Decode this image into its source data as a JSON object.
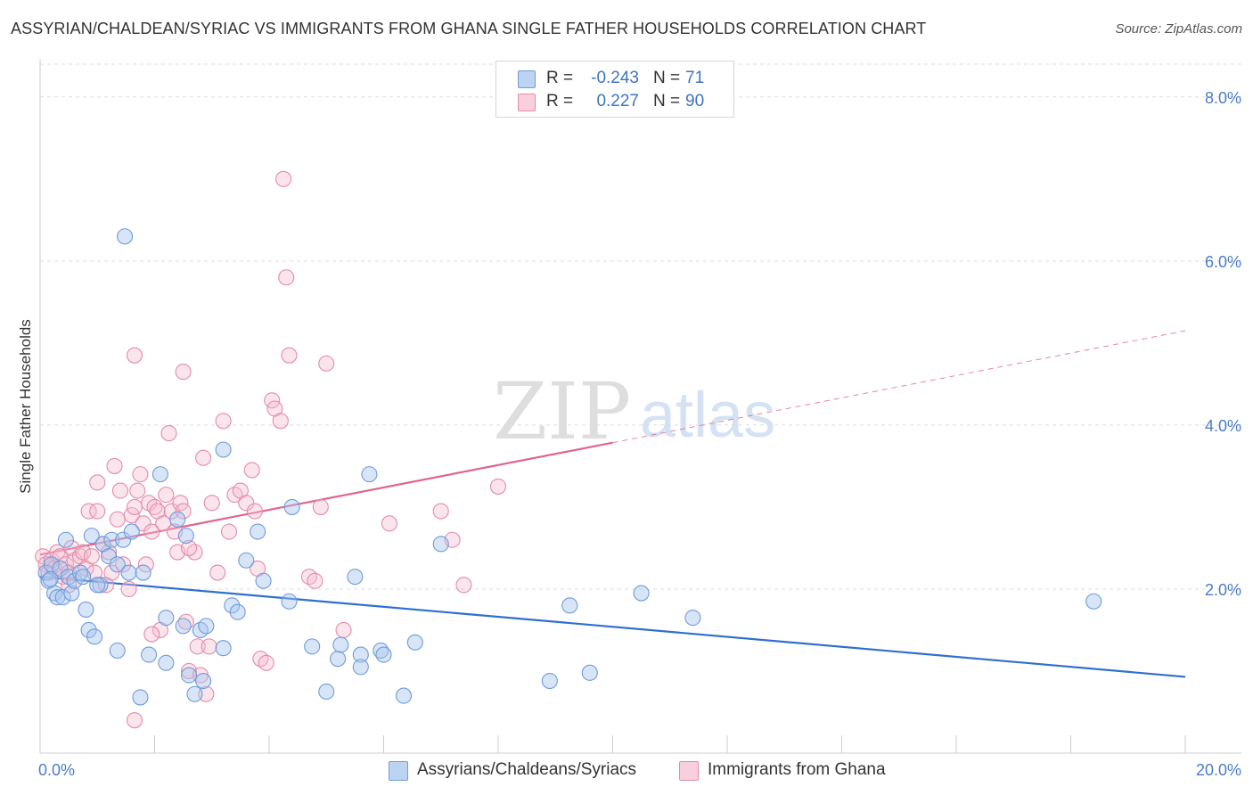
{
  "title": "ASSYRIAN/CHALDEAN/SYRIAC VS IMMIGRANTS FROM GHANA SINGLE FATHER HOUSEHOLDS CORRELATION CHART",
  "source": "Source: ZipAtlas.com",
  "watermark": {
    "zip": "ZIP",
    "atlas": "atlas"
  },
  "legend": {
    "r_label": "R =",
    "n_label": "N =",
    "rows": [
      {
        "r": "-0.243",
        "n": "71",
        "fill": "#a9c6ee",
        "stroke": "#5b8fd6"
      },
      {
        "r": "0.227",
        "n": "90",
        "fill": "#f6bfd0",
        "stroke": "#e485a6"
      }
    ]
  },
  "colors": {
    "blue": "#2f6fd0",
    "pink": "#e0648f",
    "blue_fill": "#a9c6ee",
    "pink_fill": "#f6bfd0",
    "tick_text": "#4a7cc9",
    "grid": "#dddddd"
  },
  "chart_data": {
    "type": "scatter",
    "title": "ASSYRIAN/CHALDEAN/SYRIAC VS IMMIGRANTS FROM GHANA SINGLE FATHER HOUSEHOLDS CORRELATION CHART",
    "xlabel": "",
    "ylabel": "Single Father Households",
    "xlim": [
      0,
      20
    ],
    "ylim": [
      0,
      8.4
    ],
    "x_tick_labels": [
      "0.0%",
      "20.0%"
    ],
    "y_ticks": [
      2,
      4,
      6,
      8
    ],
    "y_tick_labels": [
      "2.0%",
      "4.0%",
      "6.0%",
      "8.0%"
    ],
    "grid": true,
    "legend_position": "top-center",
    "series": [
      {
        "name": "Assyrians/Chaldeans/Syriacs",
        "color": "#2f6fd0",
        "trend": {
          "x": [
            0,
            20
          ],
          "y": [
            2.15,
            0.93
          ],
          "dashed_from": null
        },
        "points": [
          [
            0.1,
            2.2
          ],
          [
            0.15,
            2.1
          ],
          [
            0.2,
            2.3
          ],
          [
            0.25,
            1.95
          ],
          [
            0.3,
            1.9
          ],
          [
            0.35,
            2.25
          ],
          [
            0.4,
            1.9
          ],
          [
            0.45,
            2.6
          ],
          [
            0.5,
            2.15
          ],
          [
            0.55,
            1.95
          ],
          [
            0.6,
            2.1
          ],
          [
            0.7,
            2.2
          ],
          [
            0.75,
            2.15
          ],
          [
            0.8,
            1.75
          ],
          [
            0.85,
            1.5
          ],
          [
            0.9,
            2.65
          ],
          [
            0.95,
            1.42
          ],
          [
            1.05,
            2.05
          ],
          [
            1.1,
            2.55
          ],
          [
            1.2,
            2.4
          ],
          [
            1.25,
            2.6
          ],
          [
            1.35,
            2.3
          ],
          [
            1.35,
            1.25
          ],
          [
            1.45,
            2.6
          ],
          [
            1.55,
            2.2
          ],
          [
            1.6,
            2.7
          ],
          [
            1.75,
            0.68
          ],
          [
            1.8,
            2.2
          ],
          [
            1.9,
            1.2
          ],
          [
            2.1,
            3.4
          ],
          [
            2.2,
            1.1
          ],
          [
            2.2,
            1.65
          ],
          [
            2.4,
            2.85
          ],
          [
            2.5,
            1.55
          ],
          [
            2.55,
            2.65
          ],
          [
            2.6,
            0.95
          ],
          [
            2.7,
            0.72
          ],
          [
            2.8,
            1.5
          ],
          [
            2.85,
            0.88
          ],
          [
            2.9,
            1.55
          ],
          [
            3.2,
            3.7
          ],
          [
            3.2,
            1.28
          ],
          [
            3.35,
            1.8
          ],
          [
            3.45,
            1.72
          ],
          [
            3.6,
            2.35
          ],
          [
            3.8,
            2.7
          ],
          [
            4.35,
            1.85
          ],
          [
            4.4,
            3.0
          ],
          [
            4.75,
            1.3
          ],
          [
            5.0,
            0.75
          ],
          [
            5.2,
            1.15
          ],
          [
            5.25,
            1.32
          ],
          [
            5.5,
            2.15
          ],
          [
            5.6,
            1.2
          ],
          [
            5.6,
            1.05
          ],
          [
            5.75,
            3.4
          ],
          [
            5.95,
            1.25
          ],
          [
            6.0,
            1.2
          ],
          [
            6.35,
            0.7
          ],
          [
            6.55,
            1.35
          ],
          [
            7.0,
            2.55
          ],
          [
            8.9,
            0.88
          ],
          [
            9.25,
            1.8
          ],
          [
            9.6,
            0.98
          ],
          [
            10.5,
            1.95
          ],
          [
            11.4,
            1.65
          ],
          [
            1.48,
            6.3
          ],
          [
            18.4,
            1.85
          ],
          [
            0.18,
            2.12
          ],
          [
            1.0,
            2.05
          ],
          [
            3.9,
            2.1
          ]
        ]
      },
      {
        "name": "Immigrants from Ghana",
        "color": "#e0648f",
        "trend": {
          "x": [
            0,
            20
          ],
          "y": [
            2.42,
            5.15
          ],
          "dashed_from": 10
        },
        "points": [
          [
            0.05,
            2.4
          ],
          [
            0.1,
            2.3
          ],
          [
            0.15,
            2.2
          ],
          [
            0.2,
            2.35
          ],
          [
            0.25,
            2.25
          ],
          [
            0.3,
            2.45
          ],
          [
            0.35,
            2.4
          ],
          [
            0.4,
            2.15
          ],
          [
            0.45,
            2.3
          ],
          [
            0.5,
            2.2
          ],
          [
            0.55,
            2.5
          ],
          [
            0.6,
            2.35
          ],
          [
            0.7,
            2.4
          ],
          [
            0.75,
            2.45
          ],
          [
            0.8,
            2.25
          ],
          [
            0.85,
            2.95
          ],
          [
            0.9,
            2.4
          ],
          [
            0.95,
            2.2
          ],
          [
            1.0,
            2.95
          ],
          [
            1.0,
            3.3
          ],
          [
            1.1,
            2.55
          ],
          [
            1.15,
            2.05
          ],
          [
            1.2,
            2.45
          ],
          [
            1.25,
            2.2
          ],
          [
            1.3,
            3.5
          ],
          [
            1.35,
            2.85
          ],
          [
            1.4,
            3.2
          ],
          [
            1.45,
            2.3
          ],
          [
            1.55,
            2.0
          ],
          [
            1.6,
            2.9
          ],
          [
            1.65,
            3.0
          ],
          [
            1.7,
            3.2
          ],
          [
            1.75,
            3.4
          ],
          [
            1.8,
            2.8
          ],
          [
            1.85,
            2.3
          ],
          [
            1.9,
            3.05
          ],
          [
            1.95,
            2.7
          ],
          [
            2.0,
            3.0
          ],
          [
            2.05,
            2.95
          ],
          [
            2.1,
            1.5
          ],
          [
            2.15,
            2.8
          ],
          [
            2.2,
            3.15
          ],
          [
            2.25,
            3.9
          ],
          [
            2.3,
            2.95
          ],
          [
            2.35,
            2.7
          ],
          [
            2.4,
            2.45
          ],
          [
            2.45,
            3.05
          ],
          [
            2.5,
            2.95
          ],
          [
            2.55,
            1.6
          ],
          [
            2.6,
            1.0
          ],
          [
            2.7,
            2.45
          ],
          [
            2.75,
            1.3
          ],
          [
            2.8,
            0.95
          ],
          [
            2.85,
            3.6
          ],
          [
            2.9,
            0.72
          ],
          [
            2.95,
            1.3
          ],
          [
            3.0,
            3.05
          ],
          [
            3.1,
            2.2
          ],
          [
            3.2,
            4.05
          ],
          [
            3.3,
            2.7
          ],
          [
            3.4,
            3.15
          ],
          [
            3.5,
            3.2
          ],
          [
            3.6,
            3.05
          ],
          [
            3.7,
            3.45
          ],
          [
            3.75,
            2.95
          ],
          [
            3.8,
            2.25
          ],
          [
            3.85,
            1.15
          ],
          [
            3.95,
            1.1
          ],
          [
            4.05,
            4.3
          ],
          [
            4.1,
            4.2
          ],
          [
            4.2,
            4.05
          ],
          [
            4.25,
            7.0
          ],
          [
            4.3,
            5.8
          ],
          [
            4.35,
            4.85
          ],
          [
            4.7,
            2.15
          ],
          [
            4.8,
            2.1
          ],
          [
            4.9,
            3.0
          ],
          [
            5.0,
            4.75
          ],
          [
            5.3,
            1.5
          ],
          [
            6.1,
            2.8
          ],
          [
            7.2,
            2.6
          ],
          [
            7.4,
            2.05
          ],
          [
            7.0,
            2.95
          ],
          [
            8.0,
            3.25
          ],
          [
            1.65,
            0.4
          ],
          [
            2.5,
            4.65
          ],
          [
            1.65,
            4.85
          ],
          [
            0.5,
            2.05
          ],
          [
            1.95,
            1.45
          ],
          [
            2.6,
            2.5
          ]
        ]
      }
    ]
  }
}
